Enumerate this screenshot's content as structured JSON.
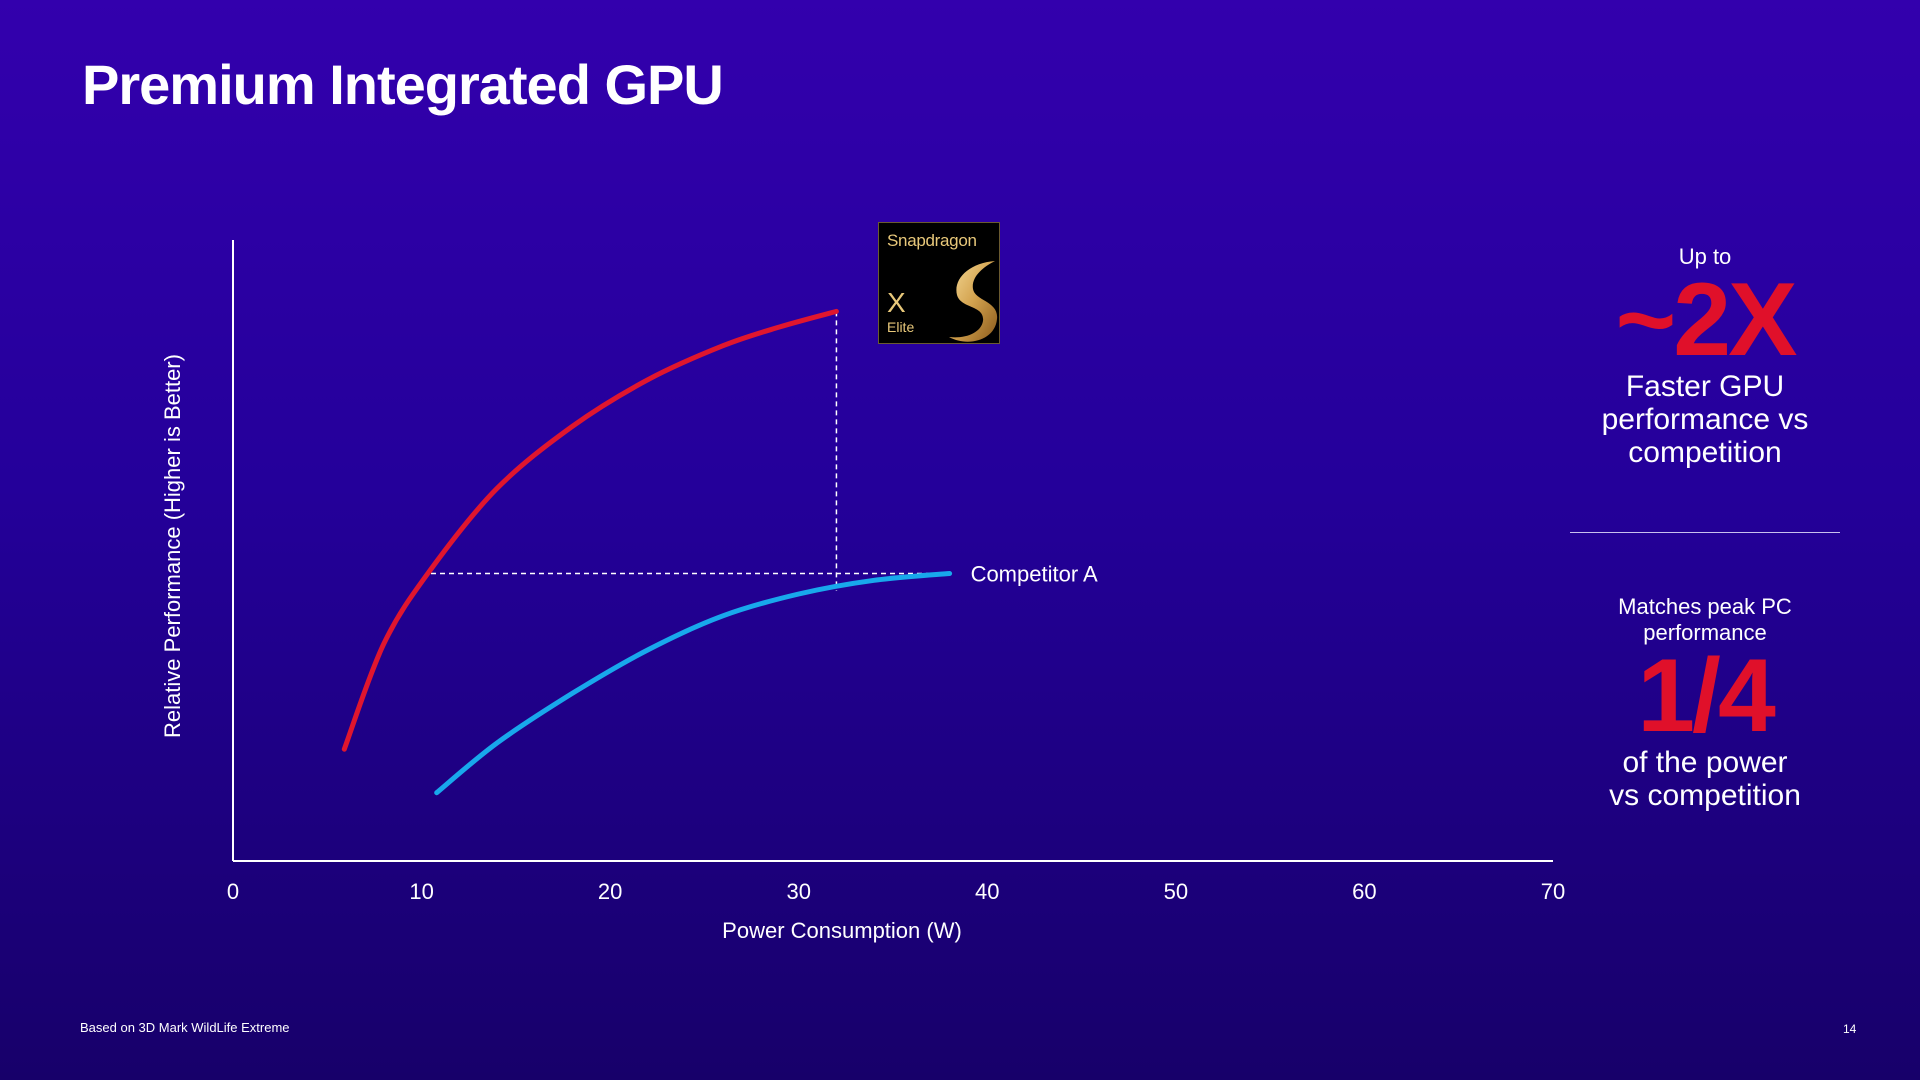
{
  "slide": {
    "title": "Premium Integrated GPU",
    "footnote": "Based on 3D Mark WildLife Extreme",
    "page_number": "14"
  },
  "logo": {
    "brand": "Snapdragon",
    "product_line": "X",
    "product_tier": "Elite"
  },
  "callout_top": {
    "prefix": "Up to",
    "highlight": "~2X",
    "line1": "Faster GPU",
    "line2": "performance vs",
    "line3": "competition"
  },
  "callout_bottom": {
    "prefix_line1": "Matches peak PC",
    "prefix_line2": "performance",
    "highlight": "1/4",
    "line1": "of the power",
    "line2": "vs competition"
  },
  "colors": {
    "snapdragon": "#e0162e",
    "competitor": "#18a8ec",
    "highlight": "#e0102a",
    "axis": "#ffffff"
  },
  "chart_data": {
    "type": "line",
    "title": "",
    "xlabel": "Power Consumption (W)",
    "ylabel": "Relative Performance (Higher is Better)",
    "xlim": [
      0,
      70
    ],
    "ylim": [
      0,
      100
    ],
    "x_ticks": [
      0,
      10,
      20,
      30,
      40,
      50,
      60,
      70
    ],
    "y_ticks_shown": false,
    "grid": false,
    "series": [
      {
        "name": "",
        "color": "#e0162e",
        "points": [
          [
            5.9,
            18
          ],
          [
            8,
            35
          ],
          [
            10.5,
            47
          ],
          [
            14,
            60
          ],
          [
            18,
            70
          ],
          [
            22,
            77.5
          ],
          [
            26,
            83
          ],
          [
            29,
            86
          ],
          [
            32,
            88.5
          ]
        ]
      },
      {
        "name": "Competitor A",
        "color": "#18a8ec",
        "points": [
          [
            10.8,
            11
          ],
          [
            14,
            19
          ],
          [
            18,
            27
          ],
          [
            22,
            34
          ],
          [
            26,
            39.5
          ],
          [
            30,
            43
          ],
          [
            34,
            45.2
          ],
          [
            38,
            46.3
          ]
        ]
      }
    ],
    "reference_lines": [
      {
        "from": [
          10.5,
          46.3
        ],
        "to": [
          38,
          46.3
        ]
      },
      {
        "from": [
          32,
          88.5
        ],
        "to": [
          32,
          43.5
        ]
      }
    ]
  }
}
